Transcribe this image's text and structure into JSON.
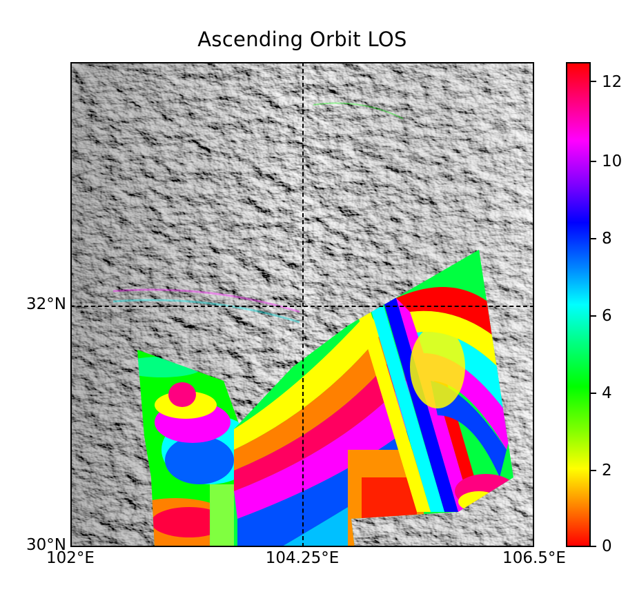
{
  "title": "Ascending Orbit LOS",
  "map": {
    "type": "interferogram-over-hillshade",
    "lat_labels": [
      "32°N",
      "30°N"
    ],
    "lon_labels": [
      "102°E",
      "104.25°E",
      "106.5°E"
    ],
    "gridlines": [
      "104.25°E",
      "32°N"
    ]
  },
  "colorbar": {
    "labels": [
      "12",
      "10",
      "8",
      "6",
      "4",
      "2",
      "0"
    ],
    "range": [
      0,
      12.57
    ],
    "colormap": "hsv"
  }
}
